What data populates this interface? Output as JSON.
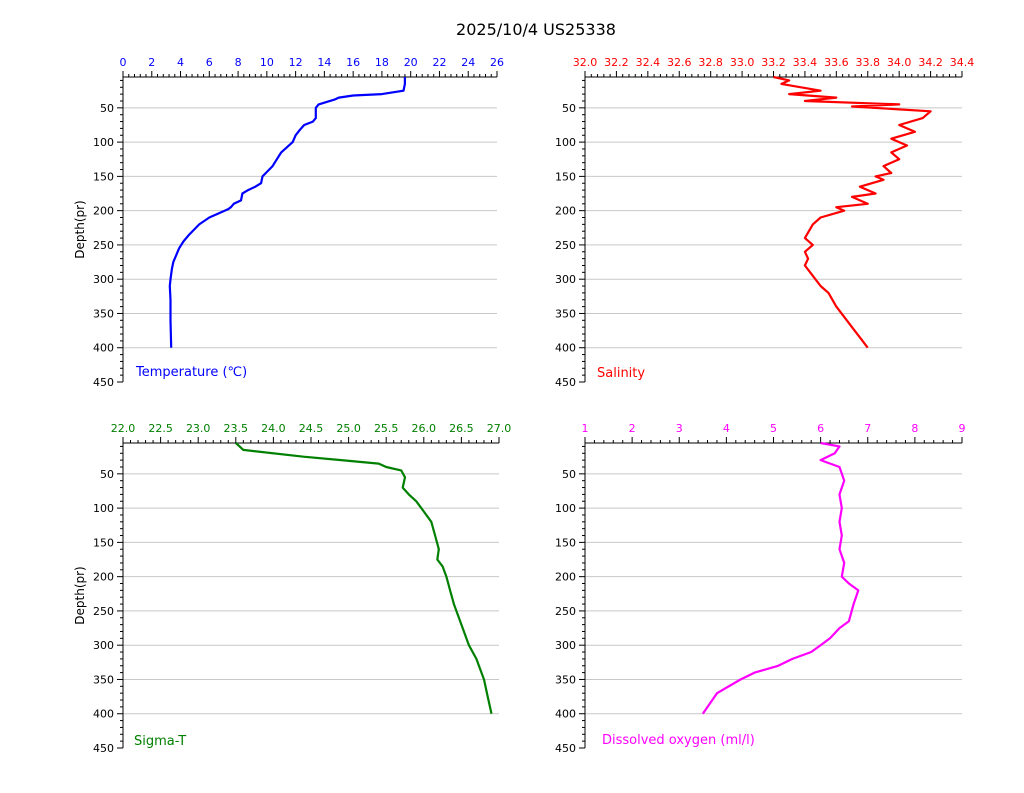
{
  "title": "2025/10/4  US25338",
  "chart_data": [
    {
      "type": "line",
      "title": "Temperature (℃)",
      "color": "#0000ff",
      "xlim": [
        0,
        26
      ],
      "xticks": [
        "0",
        "2",
        "4",
        "6",
        "8",
        "10",
        "12",
        "14",
        "16",
        "18",
        "20",
        "22",
        "24",
        "26"
      ],
      "ylabel": "Depth(pr)",
      "ylim": [
        450,
        5
      ],
      "yticks": [
        "50",
        "100",
        "150",
        "200",
        "250",
        "300",
        "350",
        "400",
        "450"
      ],
      "grid": true,
      "series": [
        {
          "x": [
            19.6,
            19.6,
            19.5,
            18.0,
            16.0,
            15.0,
            14.7,
            13.6,
            13.4,
            13.4,
            13.2,
            12.6,
            12.3,
            12.0,
            11.8,
            11.0,
            10.7,
            10.4,
            9.7,
            9.6,
            9.2,
            8.7,
            8.3,
            8.2,
            7.7,
            7.5,
            7.3,
            6.0,
            5.3,
            4.6,
            4.2,
            3.9,
            3.7,
            3.5,
            3.4,
            3.3,
            3.25,
            3.3,
            3.3,
            3.35
          ],
          "y": [
            5,
            15,
            25,
            30,
            32,
            35,
            38,
            45,
            50,
            65,
            70,
            75,
            82,
            90,
            100,
            115,
            125,
            135,
            150,
            160,
            165,
            170,
            175,
            185,
            190,
            195,
            198,
            210,
            220,
            235,
            245,
            255,
            265,
            275,
            285,
            300,
            310,
            330,
            360,
            400
          ]
        }
      ]
    },
    {
      "type": "line",
      "title": "Salinity",
      "color": "#ff0000",
      "xlim": [
        32.0,
        34.4
      ],
      "xticks": [
        "32.0",
        "32.2",
        "32.4",
        "32.6",
        "32.8",
        "33.0",
        "33.2",
        "33.4",
        "33.6",
        "33.8",
        "34.0",
        "34.2",
        "34.4"
      ],
      "ylabel": "",
      "ylim": [
        450,
        5
      ],
      "yticks": [
        "50",
        "100",
        "150",
        "200",
        "250",
        "300",
        "350",
        "400",
        "450"
      ],
      "grid": true,
      "series": [
        {
          "x": [
            33.2,
            33.3,
            33.25,
            33.5,
            33.3,
            33.6,
            33.4,
            34.0,
            33.7,
            34.2,
            34.15,
            34.0,
            34.1,
            33.95,
            34.05,
            33.95,
            34.0,
            33.9,
            33.95,
            33.85,
            33.9,
            33.75,
            33.85,
            33.7,
            33.8,
            33.6,
            33.65,
            33.5,
            33.45,
            33.4,
            33.45,
            33.4,
            33.42,
            33.4,
            33.45,
            33.5,
            33.55,
            33.6,
            33.65,
            33.7,
            33.75,
            33.8
          ],
          "y": [
            5,
            10,
            15,
            25,
            30,
            35,
            40,
            45,
            48,
            55,
            65,
            75,
            85,
            95,
            105,
            115,
            125,
            135,
            145,
            150,
            155,
            165,
            175,
            180,
            190,
            195,
            200,
            210,
            220,
            240,
            250,
            260,
            270,
            280,
            295,
            310,
            320,
            340,
            355,
            370,
            385,
            400
          ]
        }
      ]
    },
    {
      "type": "line",
      "title": "Sigma-T",
      "color": "#008000",
      "xlim": [
        22.0,
        27.0
      ],
      "xticks": [
        "22.0",
        "22.5",
        "23.0",
        "23.5",
        "24.0",
        "24.5",
        "25.0",
        "25.5",
        "26.0",
        "26.5",
        "27.0"
      ],
      "ylabel": "Depth(pr)",
      "ylim": [
        450,
        5
      ],
      "yticks": [
        "50",
        "100",
        "150",
        "200",
        "250",
        "300",
        "350",
        "400",
        "450"
      ],
      "grid": true,
      "series": [
        {
          "x": [
            23.5,
            23.55,
            23.6,
            24.4,
            24.9,
            25.4,
            25.5,
            25.7,
            25.75,
            25.72,
            25.8,
            25.9,
            26.0,
            26.1,
            26.15,
            26.2,
            26.18,
            26.25,
            26.3,
            26.35,
            26.4,
            26.5,
            26.6,
            26.7,
            26.8,
            26.85,
            26.9
          ],
          "y": [
            5,
            10,
            15,
            25,
            30,
            35,
            40,
            45,
            55,
            70,
            80,
            90,
            105,
            120,
            140,
            160,
            175,
            185,
            200,
            220,
            240,
            270,
            300,
            320,
            350,
            375,
            400
          ]
        }
      ]
    },
    {
      "type": "line",
      "title": "Dissolved oxygen (ml/l)",
      "color": "#ff00ff",
      "xlim": [
        1,
        9
      ],
      "xticks": [
        "1",
        "2",
        "3",
        "4",
        "5",
        "6",
        "7",
        "8",
        "9"
      ],
      "ylabel": "",
      "ylim": [
        450,
        5
      ],
      "yticks": [
        "50",
        "100",
        "150",
        "200",
        "250",
        "300",
        "350",
        "400",
        "450"
      ],
      "grid": true,
      "series": [
        {
          "x": [
            6.0,
            6.4,
            6.3,
            6.0,
            6.4,
            6.5,
            6.4,
            6.45,
            6.4,
            6.45,
            6.4,
            6.5,
            6.45,
            6.6,
            6.8,
            6.7,
            6.6,
            6.4,
            6.2,
            6.0,
            5.8,
            5.4,
            5.1,
            4.6,
            4.3,
            3.8,
            3.5
          ],
          "y": [
            5,
            10,
            20,
            30,
            40,
            60,
            80,
            100,
            120,
            140,
            160,
            180,
            200,
            210,
            220,
            240,
            265,
            275,
            290,
            300,
            310,
            320,
            330,
            340,
            350,
            370,
            400
          ]
        }
      ]
    }
  ]
}
